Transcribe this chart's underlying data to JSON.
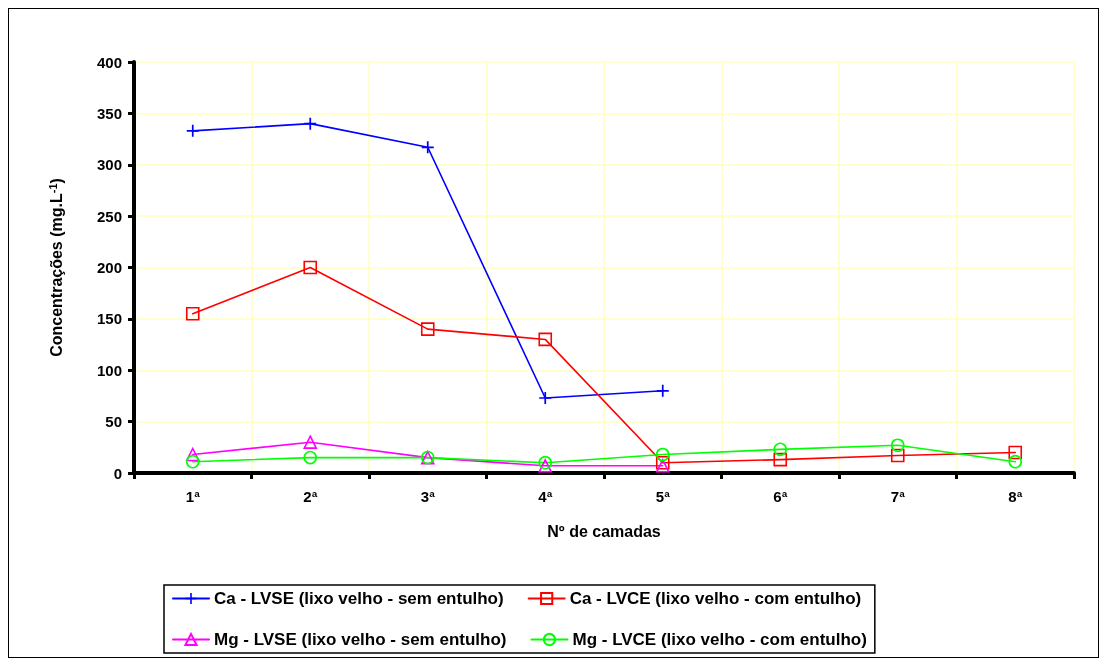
{
  "chart_data": {
    "type": "line",
    "xlabel": "Nº de camadas",
    "ylabel": "Concentrações (mg.L$^{-1}$)",
    "categories": [
      "1ª",
      "2ª",
      "3ª",
      "4ª",
      "5ª",
      "6ª",
      "7ª",
      "8ª"
    ],
    "series": [
      {
        "name": "Ca - LVSE (lixo velho - sem entulho)",
        "color": "#0000ff",
        "marker": "cross",
        "values": [
          333,
          340,
          317,
          73,
          80,
          null,
          null,
          null
        ]
      },
      {
        "name": "Ca - LVCE (lixo velho - com entulho)",
        "color": "#ff0000",
        "marker": "square",
        "values": [
          155,
          200,
          140,
          130,
          10,
          13,
          17,
          20
        ]
      },
      {
        "name": "Mg - LVSE (lixo velho - sem entulho)",
        "color": "#ff00ff",
        "marker": "triangle",
        "values": [
          18,
          30,
          15,
          7,
          7,
          null,
          null,
          null
        ]
      },
      {
        "name": "Mg - LVCE (lixo velho - com entulho)",
        "color": "#00ff00",
        "marker": "circle",
        "values": [
          11,
          15,
          15,
          10,
          18,
          23,
          27,
          11
        ]
      }
    ],
    "ylim": [
      0,
      400
    ],
    "yticks": [
      0,
      50,
      100,
      150,
      200,
      250,
      300,
      350,
      400
    ],
    "grid": true,
    "legend": "bottom"
  }
}
